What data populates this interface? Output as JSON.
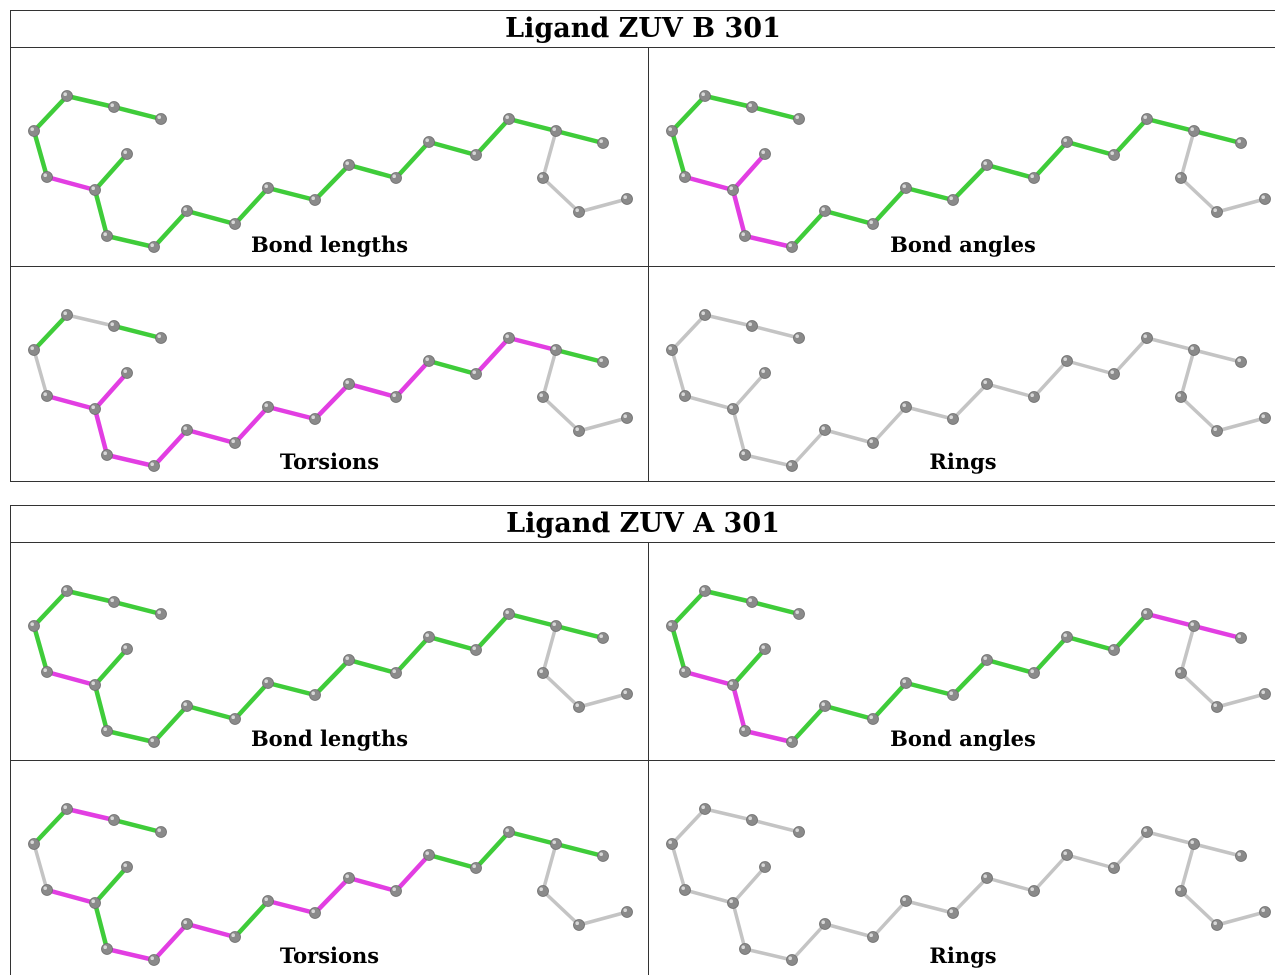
{
  "colors": {
    "plain_bond": "#c4c4c4",
    "green_bond": "#3fcc3a",
    "magenta_bond": "#e23ee2",
    "atom": "#8a8a8a",
    "border": "#333333"
  },
  "ligand_b": {
    "title": "Ligand ZUV B 301",
    "panels": [
      {
        "caption": "Bond lengths",
        "bond_colors": [
          "G",
          "G",
          "G",
          "G",
          "M",
          "G",
          "G",
          "G",
          "G",
          "G",
          "G",
          "G",
          "G",
          "G",
          "G",
          "G",
          "G",
          "G",
          "G",
          "N",
          "N",
          "N",
          "G",
          "G",
          "N",
          "M",
          "G"
        ]
      },
      {
        "caption": "Bond angles",
        "bond_colors": [
          "G",
          "G",
          "G",
          "G",
          "M",
          "M",
          "M",
          "M",
          "G",
          "G",
          "G",
          "G",
          "G",
          "G",
          "G",
          "G",
          "G",
          "G",
          "G",
          "N",
          "N",
          "N",
          "G",
          "G",
          "G",
          "M",
          "G"
        ]
      },
      {
        "caption": "Torsions",
        "bond_colors": [
          "N",
          "G",
          "G",
          "N",
          "M",
          "M",
          "M",
          "M",
          "M",
          "M",
          "M",
          "M",
          "M",
          "M",
          "M",
          "G",
          "M",
          "M",
          "G",
          "N",
          "N",
          "N",
          "G",
          "N",
          "N",
          "M",
          "N"
        ]
      },
      {
        "caption": "Rings",
        "bond_colors": [
          "N",
          "N",
          "N",
          "N",
          "N",
          "N",
          "N",
          "N",
          "N",
          "N",
          "N",
          "N",
          "N",
          "N",
          "N",
          "N",
          "N",
          "N",
          "N",
          "N",
          "N",
          "N",
          "N",
          "N",
          "N",
          "N",
          "N"
        ]
      }
    ]
  },
  "ligand_a": {
    "title": "Ligand ZUV A 301",
    "panels": [
      {
        "caption": "Bond lengths",
        "bond_colors": [
          "G",
          "G",
          "G",
          "G",
          "M",
          "G",
          "G",
          "G",
          "G",
          "G",
          "G",
          "G",
          "G",
          "G",
          "G",
          "G",
          "G",
          "G",
          "G",
          "N",
          "N",
          "N",
          "G",
          "G",
          "N",
          "M",
          "G"
        ]
      },
      {
        "caption": "Bond angles",
        "bond_colors": [
          "G",
          "G",
          "G",
          "G",
          "M",
          "G",
          "M",
          "M",
          "G",
          "G",
          "G",
          "G",
          "G",
          "G",
          "G",
          "G",
          "G",
          "M",
          "M",
          "N",
          "N",
          "N",
          "G",
          "G",
          "G",
          "G",
          "G"
        ]
      },
      {
        "caption": "Torsions",
        "bond_colors": [
          "M",
          "G",
          "G",
          "N",
          "M",
          "G",
          "G",
          "M",
          "M",
          "M",
          "G",
          "M",
          "M",
          "M",
          "M",
          "G",
          "G",
          "G",
          "G",
          "N",
          "N",
          "N",
          "G",
          "G",
          "N",
          "M",
          "N"
        ]
      },
      {
        "caption": "Rings",
        "bond_colors": [
          "N",
          "N",
          "N",
          "N",
          "N",
          "N",
          "N",
          "N",
          "N",
          "N",
          "N",
          "N",
          "N",
          "N",
          "N",
          "N",
          "N",
          "N",
          "N",
          "N",
          "N",
          "N",
          "N",
          "N",
          "N",
          "N",
          "N"
        ]
      }
    ]
  }
}
